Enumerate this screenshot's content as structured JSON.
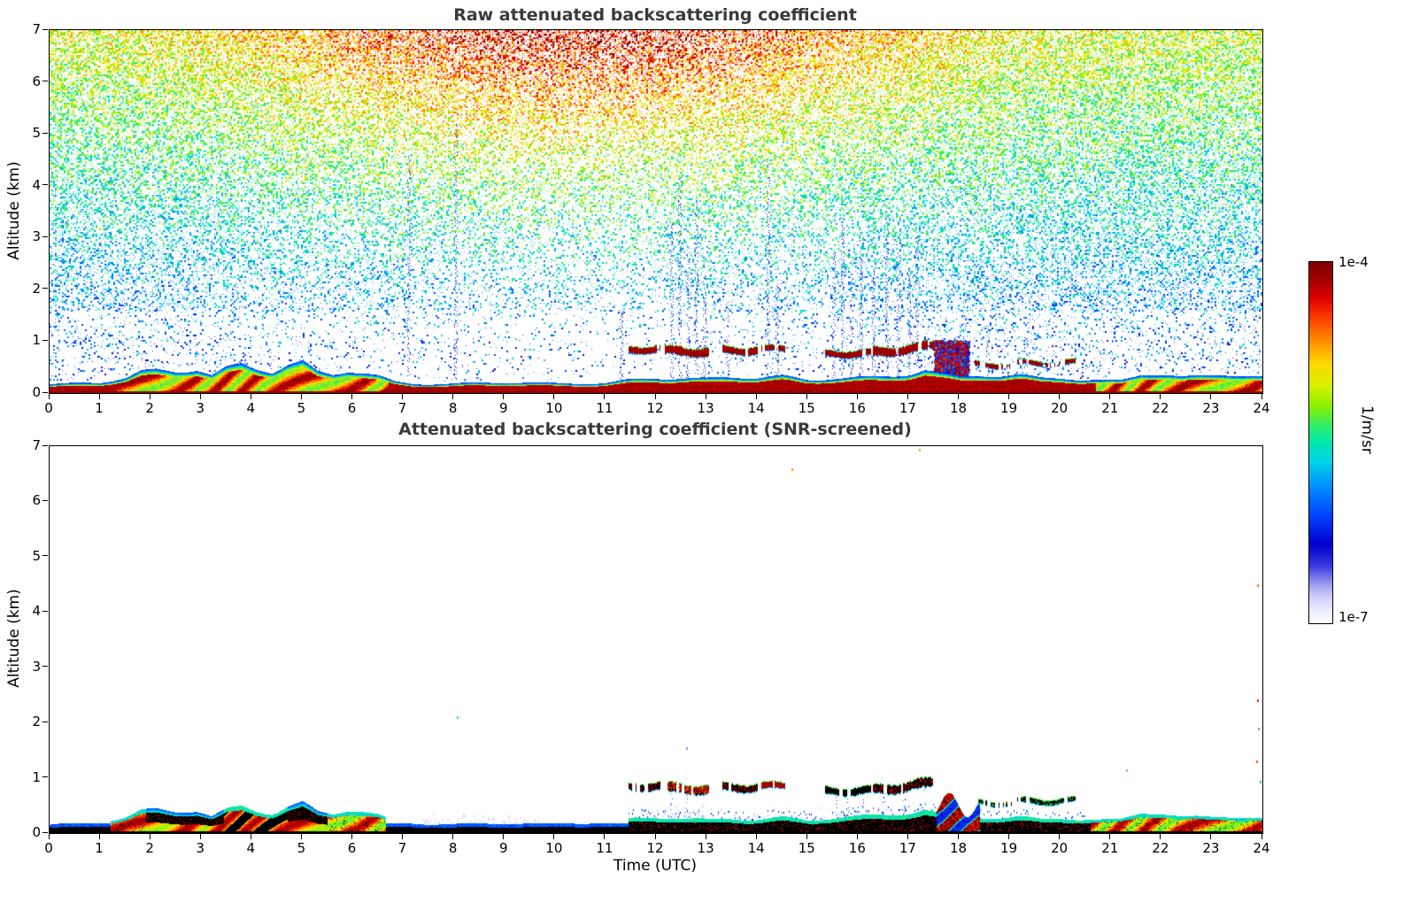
{
  "chart_data": {
    "type": "heatmap",
    "panels": [
      {
        "id": "raw",
        "title": "Raw attenuated backscattering coefficient",
        "xlabel": "",
        "ylabel": "Altitude (km)",
        "xlim": [
          0,
          24
        ],
        "ylim": [
          0,
          7
        ],
        "xticks": [
          0,
          1,
          2,
          3,
          4,
          5,
          6,
          7,
          8,
          9,
          10,
          11,
          12,
          13,
          14,
          15,
          16,
          17,
          18,
          19,
          20,
          21,
          22,
          23,
          24
        ],
        "yticks": [
          0,
          1,
          2,
          3,
          4,
          5,
          6,
          7
        ]
      },
      {
        "id": "screened",
        "title": "Attenuated backscattering coefficient (SNR-screened)",
        "xlabel": "Time (UTC)",
        "ylabel": "Altitude (km)",
        "xlim": [
          0,
          24
        ],
        "ylim": [
          0,
          7
        ],
        "xticks": [
          0,
          1,
          2,
          3,
          4,
          5,
          6,
          7,
          8,
          9,
          10,
          11,
          12,
          13,
          14,
          15,
          16,
          17,
          18,
          19,
          20,
          21,
          22,
          23,
          24
        ],
        "yticks": [
          0,
          1,
          2,
          3,
          4,
          5,
          6,
          7
        ]
      }
    ],
    "colorbar": {
      "label": "1/m/sr",
      "tick_top": "1e-4",
      "tick_bottom": "1e-7",
      "scale": "log",
      "vmax": "1e-4",
      "vmin": "1e-7",
      "colormap": [
        [
          0.0,
          "#ffffff"
        ],
        [
          0.04,
          "#eaeaff"
        ],
        [
          0.08,
          "#c8c8f8"
        ],
        [
          0.12,
          "#8888ee"
        ],
        [
          0.16,
          "#3a3ae0"
        ],
        [
          0.22,
          "#0000cc"
        ],
        [
          0.3,
          "#0044ff"
        ],
        [
          0.38,
          "#0090ff"
        ],
        [
          0.45,
          "#00d4e8"
        ],
        [
          0.5,
          "#00e8b0"
        ],
        [
          0.55,
          "#33ee66"
        ],
        [
          0.6,
          "#88f000"
        ],
        [
          0.66,
          "#d8f000"
        ],
        [
          0.72,
          "#ffd800"
        ],
        [
          0.78,
          "#ff9100"
        ],
        [
          0.84,
          "#ff4400"
        ],
        [
          0.9,
          "#e00000"
        ],
        [
          0.95,
          "#a50000"
        ],
        [
          1.0,
          "#7f0000"
        ]
      ]
    },
    "render": {
      "noise": {
        "day_center": 10.5,
        "day_sigma": 4.5
      },
      "colorful_ranges": [
        [
          1.2,
          6.7
        ],
        [
          20.7,
          24.0
        ]
      ],
      "boundary_layer": {
        "t": [
          0,
          0.5,
          1.0,
          1.5,
          1.8,
          2.1,
          2.5,
          2.9,
          3.2,
          3.5,
          3.8,
          4.1,
          4.4,
          4.7,
          5.0,
          5.3,
          5.6,
          5.9,
          6.2,
          6.5,
          6.8,
          7.2,
          8.0,
          9.0,
          10.0,
          11.0,
          11.5,
          12.0,
          12.5,
          13.0,
          13.5,
          14.0,
          14.5,
          15.0,
          15.5,
          16.0,
          16.5,
          17.0,
          17.3,
          17.6,
          18.0,
          18.4,
          18.8,
          19.2,
          19.6,
          20.0,
          20.4,
          20.8,
          21.2,
          21.6,
          22.0,
          22.4,
          22.8,
          23.2,
          23.6,
          24.0
        ],
        "h": [
          0.15,
          0.17,
          0.2,
          0.3,
          0.42,
          0.45,
          0.43,
          0.47,
          0.33,
          0.46,
          0.52,
          0.44,
          0.38,
          0.5,
          0.55,
          0.38,
          0.35,
          0.44,
          0.4,
          0.33,
          0.22,
          0.18,
          0.17,
          0.19,
          0.17,
          0.19,
          0.26,
          0.3,
          0.28,
          0.26,
          0.29,
          0.27,
          0.3,
          0.24,
          0.28,
          0.3,
          0.33,
          0.38,
          0.44,
          0.36,
          0.3,
          0.33,
          0.29,
          0.31,
          0.28,
          0.3,
          0.24,
          0.23,
          0.26,
          0.4,
          0.34,
          0.28,
          0.33,
          0.35,
          0.29,
          0.27
        ]
      },
      "bl_modes": [
        {
          "t0": 0.0,
          "t1": 1.2,
          "mode": "thin"
        },
        {
          "t0": 1.2,
          "t1": 1.9,
          "mode": "colorful"
        },
        {
          "t0": 1.9,
          "t1": 3.45,
          "mode": "blackTop"
        },
        {
          "t0": 3.45,
          "t1": 4.7,
          "mode": "mixed"
        },
        {
          "t0": 4.7,
          "t1": 5.5,
          "mode": "blackTop"
        },
        {
          "t0": 5.5,
          "t1": 6.65,
          "mode": "colorful"
        },
        {
          "t0": 6.65,
          "t1": 11.45,
          "mode": "thin"
        },
        {
          "t0": 11.45,
          "t1": 17.55,
          "mode": "blackCyan"
        },
        {
          "t0": 17.55,
          "t1": 18.4,
          "mode": "blob"
        },
        {
          "t0": 18.4,
          "t1": 20.6,
          "mode": "blackCyan"
        },
        {
          "t0": 20.6,
          "t1": 24.01,
          "mode": "colorful"
        }
      ],
      "clouds": [
        {
          "x0": 11.45,
          "x1": 12.08,
          "alt": 0.84,
          "th": 0.1,
          "style": "blackred"
        },
        {
          "x0": 12.18,
          "x1": 13.05,
          "alt": 0.8,
          "th": 0.13,
          "style": "redblack"
        },
        {
          "x0": 13.32,
          "x1": 14.02,
          "alt": 0.85,
          "th": 0.1,
          "style": "blackred"
        },
        {
          "x0": 14.08,
          "x1": 14.55,
          "alt": 0.86,
          "th": 0.08,
          "style": "red"
        },
        {
          "x0": 15.35,
          "x1": 16.25,
          "alt": 0.74,
          "th": 0.1,
          "slope": 0.05,
          "style": "black"
        },
        {
          "x0": 16.3,
          "x1": 17.5,
          "alt": 0.8,
          "th": 0.13,
          "slope": 0.12,
          "style": "blackred"
        },
        {
          "x0": 18.3,
          "x1": 19.05,
          "alt": 0.54,
          "th": 0.06,
          "gap": 0.12,
          "style": "blackcyan"
        },
        {
          "x0": 19.15,
          "x1": 20.3,
          "alt": 0.6,
          "th": 0.06,
          "gap": 0.15,
          "style": "blackcyan"
        }
      ],
      "precip": [
        {
          "t": 7.1,
          "top": 4.6
        },
        {
          "t": 8.02,
          "top": 5.2
        },
        {
          "t": 11.3,
          "top": 1.6
        },
        {
          "t": 12.3,
          "top": 3.3
        },
        {
          "t": 12.45,
          "top": 4.2
        },
        {
          "t": 12.62,
          "top": 2.7
        },
        {
          "t": 12.78,
          "top": 3.7
        },
        {
          "t": 12.95,
          "top": 2.3
        },
        {
          "t": 13.4,
          "top": 1.8
        },
        {
          "t": 14.2,
          "top": 4.5
        },
        {
          "t": 14.38,
          "top": 2.1
        },
        {
          "t": 15.5,
          "top": 2.7
        },
        {
          "t": 15.68,
          "top": 3.4
        },
        {
          "t": 15.85,
          "top": 2.3
        },
        {
          "t": 16.05,
          "top": 3.1
        },
        {
          "t": 16.3,
          "top": 2.5
        },
        {
          "t": 16.55,
          "top": 3.5
        },
        {
          "t": 16.78,
          "top": 2.9
        },
        {
          "t": 17.0,
          "top": 2.4
        },
        {
          "t": 17.15,
          "top": 3.1
        },
        {
          "t": 18.1,
          "top": 1.6
        },
        {
          "t": 18.55,
          "top": 1.3
        },
        {
          "t": 19.3,
          "top": 1.1
        }
      ],
      "precip_screened": [
        {
          "t": 12.3,
          "top": 0.75
        },
        {
          "t": 12.6,
          "top": 0.7
        },
        {
          "t": 15.55,
          "top": 0.7
        },
        {
          "t": 15.8,
          "top": 0.72
        },
        {
          "t": 16.1,
          "top": 0.7
        },
        {
          "t": 16.5,
          "top": 0.75
        },
        {
          "t": 16.9,
          "top": 0.78
        },
        {
          "t": 17.3,
          "top": 0.8
        }
      ],
      "haze": [
        {
          "t0": 7.3,
          "t1": 9.7,
          "top": 0.38
        },
        {
          "t0": 11.7,
          "t1": 13.3,
          "top": 0.55
        },
        {
          "t0": 13.5,
          "t1": 14.6,
          "top": 0.4
        },
        {
          "t0": 15.1,
          "t1": 16.6,
          "top": 0.5
        }
      ],
      "blob_box": {
        "t0": 17.5,
        "t1": 18.18,
        "a0": 0.2,
        "a1": 1.02
      },
      "specks": [
        {
          "t": 8.05,
          "a": 2.12,
          "c": "#33ddcc"
        },
        {
          "t": 14.68,
          "a": 6.6,
          "c": "#ff9900"
        },
        {
          "t": 17.2,
          "a": 6.95,
          "c": "#99cc33"
        },
        {
          "t": 12.6,
          "a": 1.55,
          "c": "#7799ff"
        },
        {
          "t": 21.3,
          "a": 1.15,
          "c": "#88aaff"
        },
        {
          "t": 23.9,
          "a": 4.5,
          "c": "#ff6600"
        },
        {
          "t": 23.9,
          "a": 2.42,
          "c": "#dd2200"
        },
        {
          "t": 23.92,
          "a": 1.9,
          "c": "#44bb66"
        },
        {
          "t": 23.88,
          "a": 1.32,
          "c": "#ff5500"
        },
        {
          "t": 23.95,
          "a": 0.95,
          "c": "#00ccaa"
        }
      ]
    }
  }
}
